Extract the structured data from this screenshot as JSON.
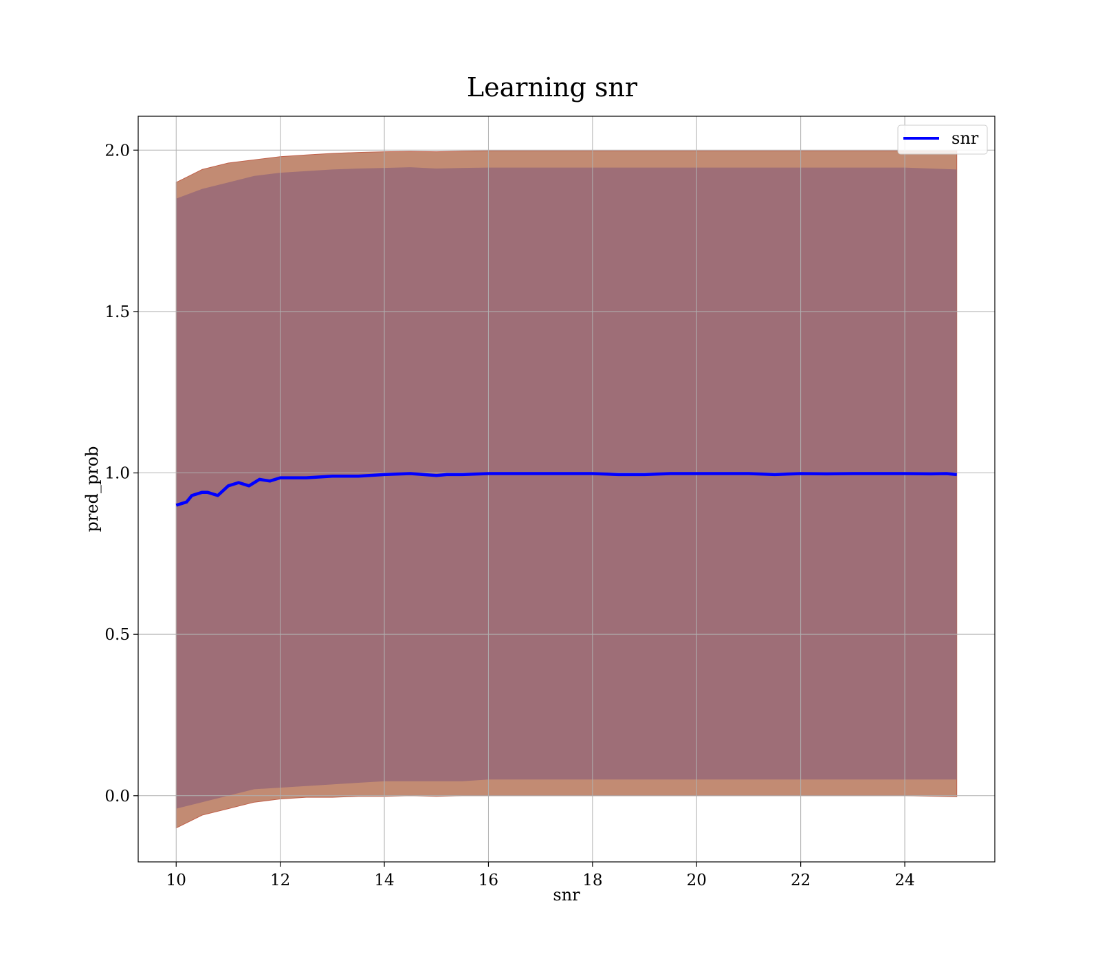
{
  "chart_data": {
    "type": "line",
    "title": "Learning snr",
    "xlabel": "snr",
    "ylabel": "pred_prob",
    "xlim": [
      9.27,
      25.73
    ],
    "ylim": [
      -0.205,
      2.105
    ],
    "xticks": [
      10,
      12,
      14,
      16,
      18,
      20,
      22,
      24
    ],
    "yticks": [
      0.0,
      0.5,
      1.0,
      1.5,
      2.0
    ],
    "xtick_labels": [
      "10",
      "12",
      "14",
      "16",
      "18",
      "20",
      "22",
      "24"
    ],
    "ytick_labels": [
      "0.0",
      "0.5",
      "1.0",
      "1.5",
      "2.0"
    ],
    "grid": true,
    "legend": {
      "position": "top-right",
      "entries": [
        "snr"
      ]
    },
    "series": [
      {
        "name": "snr",
        "color": "#0000ff",
        "x": [
          10.0,
          10.2,
          10.3,
          10.5,
          10.6,
          10.8,
          11.0,
          11.2,
          11.4,
          11.6,
          11.8,
          12.0,
          12.5,
          13.0,
          13.5,
          14.0,
          14.5,
          15.0,
          15.2,
          15.5,
          16.0,
          17.0,
          18.0,
          18.5,
          19.0,
          19.5,
          20.0,
          21.0,
          21.5,
          22.0,
          22.5,
          23.0,
          24.0,
          24.5,
          24.8,
          25.0
        ],
        "y": [
          0.9,
          0.91,
          0.93,
          0.94,
          0.94,
          0.93,
          0.96,
          0.97,
          0.96,
          0.98,
          0.975,
          0.985,
          0.985,
          0.99,
          0.99,
          0.995,
          0.998,
          0.992,
          0.995,
          0.995,
          0.998,
          0.998,
          0.998,
          0.995,
          0.995,
          0.998,
          0.998,
          0.998,
          0.995,
          0.998,
          0.997,
          0.998,
          0.998,
          0.997,
          0.998,
          0.995
        ]
      }
    ],
    "bands": [
      {
        "color": "#c28b73",
        "x": [
          10.0,
          10.5,
          11.0,
          11.5,
          12.0,
          12.5,
          13.0,
          13.5,
          14.0,
          14.5,
          15.0,
          15.5,
          16.0,
          17.0,
          18.0,
          19.0,
          20.0,
          21.0,
          22.0,
          23.0,
          24.0,
          25.0
        ],
        "lower": [
          -0.1,
          -0.06,
          -0.04,
          -0.02,
          -0.01,
          -0.005,
          -0.005,
          -0.002,
          -0.002,
          0.0,
          -0.002,
          0.0,
          0.0,
          0.0,
          0.0,
          0.0,
          0.0,
          0.0,
          0.0,
          0.0,
          0.0,
          -0.003
        ],
        "upper": [
          1.9,
          1.94,
          1.96,
          1.97,
          1.98,
          1.985,
          1.99,
          1.993,
          1.995,
          1.996,
          1.995,
          1.997,
          1.998,
          1.998,
          1.998,
          1.998,
          1.998,
          1.998,
          1.998,
          1.998,
          1.998,
          1.998
        ]
      },
      {
        "color": "#9e6e77",
        "x": [
          10.0,
          10.5,
          11.0,
          11.5,
          12.0,
          12.5,
          13.0,
          13.5,
          14.0,
          14.5,
          15.0,
          15.5,
          16.0,
          17.0,
          18.0,
          19.0,
          20.0,
          21.0,
          22.0,
          23.0,
          24.0,
          25.0
        ],
        "lower": [
          -0.04,
          -0.02,
          0.0,
          0.02,
          0.025,
          0.03,
          0.035,
          0.04,
          0.045,
          0.045,
          0.045,
          0.045,
          0.05,
          0.05,
          0.05,
          0.05,
          0.05,
          0.05,
          0.05,
          0.05,
          0.05,
          0.05
        ],
        "upper": [
          1.85,
          1.88,
          1.9,
          1.92,
          1.93,
          1.935,
          1.94,
          1.943,
          1.945,
          1.947,
          1.943,
          1.945,
          1.946,
          1.946,
          1.946,
          1.946,
          1.946,
          1.946,
          1.946,
          1.946,
          1.946,
          1.94
        ]
      }
    ]
  }
}
